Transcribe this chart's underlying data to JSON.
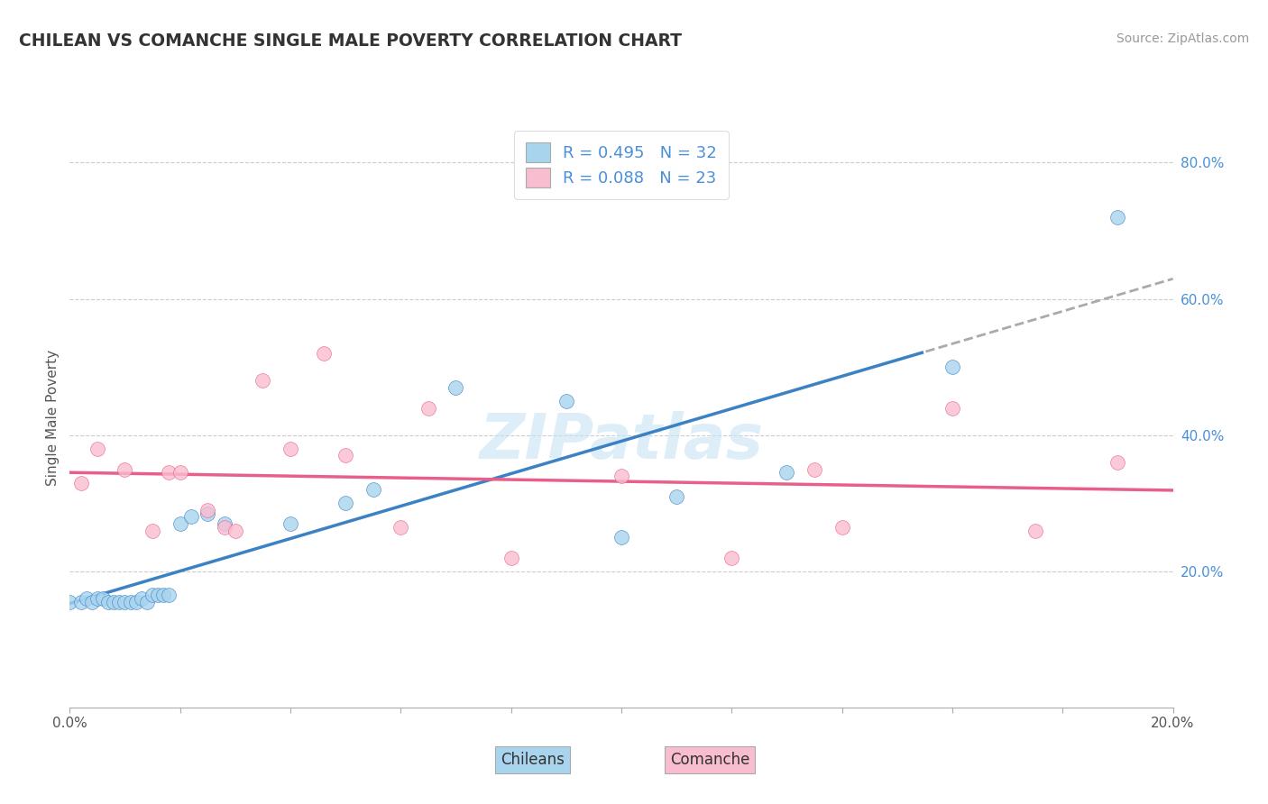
{
  "title": "CHILEAN VS COMANCHE SINGLE MALE POVERTY CORRELATION CHART",
  "source": "Source: ZipAtlas.com",
  "ylabel": "Single Male Poverty",
  "xlim": [
    0.0,
    0.2
  ],
  "ylim": [
    0.0,
    0.85
  ],
  "x_ticks": [
    0.0,
    0.02,
    0.04,
    0.06,
    0.08,
    0.1,
    0.12,
    0.14,
    0.16,
    0.18,
    0.2
  ],
  "x_tick_labels": [
    "0.0%",
    "",
    "",
    "",
    "",
    "",
    "",
    "",
    "",
    "",
    "20.0%"
  ],
  "y_tick_vals_right": [
    0.2,
    0.4,
    0.6,
    0.8
  ],
  "y_tick_labels_right": [
    "20.0%",
    "40.0%",
    "60.0%",
    "80.0%"
  ],
  "chilean_R": 0.495,
  "chilean_N": 32,
  "comanche_R": 0.088,
  "comanche_N": 23,
  "chilean_color": "#A8D4EE",
  "comanche_color": "#F9BDD0",
  "chilean_line_color": "#3B82C4",
  "comanche_line_color": "#E8608A",
  "watermark": "ZIPatlas",
  "chilean_x": [
    0.0,
    0.002,
    0.003,
    0.004,
    0.005,
    0.006,
    0.007,
    0.008,
    0.009,
    0.01,
    0.011,
    0.012,
    0.013,
    0.014,
    0.015,
    0.016,
    0.017,
    0.018,
    0.02,
    0.022,
    0.025,
    0.028,
    0.04,
    0.05,
    0.055,
    0.07,
    0.09,
    0.1,
    0.11,
    0.13,
    0.16,
    0.19
  ],
  "chilean_y": [
    0.155,
    0.155,
    0.16,
    0.155,
    0.16,
    0.16,
    0.155,
    0.155,
    0.155,
    0.155,
    0.155,
    0.155,
    0.16,
    0.155,
    0.165,
    0.165,
    0.165,
    0.165,
    0.27,
    0.28,
    0.285,
    0.27,
    0.27,
    0.3,
    0.32,
    0.47,
    0.45,
    0.25,
    0.31,
    0.345,
    0.5,
    0.72
  ],
  "comanche_x": [
    0.002,
    0.005,
    0.01,
    0.015,
    0.018,
    0.02,
    0.025,
    0.028,
    0.03,
    0.035,
    0.04,
    0.046,
    0.05,
    0.06,
    0.065,
    0.08,
    0.1,
    0.12,
    0.135,
    0.14,
    0.16,
    0.175,
    0.19
  ],
  "comanche_y": [
    0.33,
    0.38,
    0.35,
    0.26,
    0.345,
    0.345,
    0.29,
    0.265,
    0.26,
    0.48,
    0.38,
    0.52,
    0.37,
    0.265,
    0.44,
    0.22,
    0.34,
    0.22,
    0.35,
    0.265,
    0.44,
    0.26,
    0.36
  ]
}
